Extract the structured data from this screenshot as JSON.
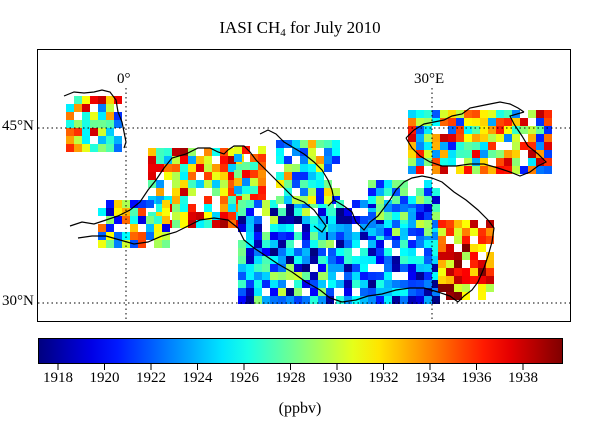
{
  "title": {
    "prefix": "IASI CH",
    "sub": "4",
    "suffix": " for July 2010"
  },
  "map": {
    "lon_labels": [
      "0°",
      "30°E"
    ],
    "lat_labels": [
      "45°N",
      "30°N"
    ]
  },
  "colorbar": {
    "ticks": [
      "1918",
      "1920",
      "1922",
      "1924",
      "1926",
      "1928",
      "1930",
      "1932",
      "1934",
      "1936",
      "1938"
    ],
    "unit": "(ppbv)",
    "colormap": "jet"
  }
}
